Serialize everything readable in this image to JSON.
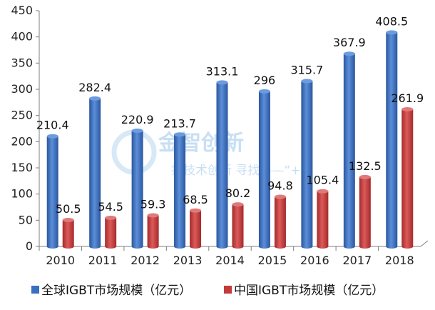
{
  "colors": {
    "global": "#3a6fc0",
    "china": "#c23a3a",
    "axis": "#7f7f7f",
    "grid": "#d9d9d9"
  },
  "watermark": {
    "title": "金智创新",
    "subtitle": "找技术创新 寻找——“+”"
  },
  "chart_data": {
    "type": "bar",
    "categories": [
      "2010",
      "2011",
      "2012",
      "2013",
      "2014",
      "2015",
      "2016",
      "2017",
      "2018"
    ],
    "series": [
      {
        "name": "全球IGBT市场规模（亿元）",
        "values": [
          210.4,
          282.4,
          220.9,
          213.7,
          313.1,
          296,
          315.7,
          367.9,
          408.5
        ]
      },
      {
        "name": "中国IGBT市场规模（亿元）",
        "values": [
          50.5,
          54.5,
          59.3,
          68.5,
          80.2,
          94.8,
          105.4,
          132.5,
          261.9
        ]
      }
    ],
    "value_labels": [
      [
        "210.4",
        "282.4",
        "220.9",
        "213.7",
        "313.1",
        "296",
        "315.7",
        "367.9",
        "408.5"
      ],
      [
        "50.5",
        "54.5",
        "59.3",
        "68.5",
        "80.2",
        "94.8",
        "105.4",
        "132.5",
        "261.9"
      ]
    ],
    "y_ticks": [
      "0",
      "50",
      "100",
      "150",
      "200",
      "250",
      "300",
      "350",
      "400",
      "450"
    ],
    "ylim": [
      0,
      450
    ],
    "grid": false,
    "legend_position": "bottom",
    "title": "",
    "xlabel": "",
    "ylabel": ""
  }
}
